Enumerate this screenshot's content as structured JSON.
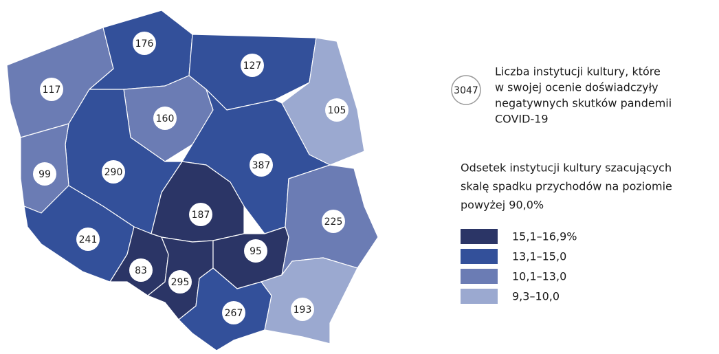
{
  "legend": {
    "circle_example": "3047",
    "circle_text": [
      "Liczba instytucji kultury, które",
      "w swojej ocenie doświadczyły",
      "negatywnych skutków pandemii",
      "COVID-19"
    ],
    "title": [
      "Odsetek instytucji kultury szacujących",
      "skalę spadku przychodów na poziomie",
      "powyżej 90,0%"
    ],
    "items": [
      {
        "label": "15,1–16,9%",
        "color": "#2b3566"
      },
      {
        "label": "13,1–15,0",
        "color": "#33509a"
      },
      {
        "label": "10,1–13,0",
        "color": "#6b7cb4"
      },
      {
        "label": "9,3–10,0",
        "color": "#9ba9d0"
      }
    ]
  },
  "regions": [
    {
      "value": "117",
      "color": "#6b7cb4"
    },
    {
      "value": "176",
      "color": "#33509a"
    },
    {
      "value": "127",
      "color": "#33509a"
    },
    {
      "value": "105",
      "color": "#9ba9d0"
    },
    {
      "value": "160",
      "color": "#6b7cb4"
    },
    {
      "value": "290",
      "color": "#33509a"
    },
    {
      "value": "99",
      "color": "#6b7cb4"
    },
    {
      "value": "387",
      "color": "#33509a"
    },
    {
      "value": "187",
      "color": "#2b3566"
    },
    {
      "value": "241",
      "color": "#33509a"
    },
    {
      "value": "83",
      "color": "#2b3566"
    },
    {
      "value": "295",
      "color": "#2b3566"
    },
    {
      "value": "95",
      "color": "#2b3566"
    },
    {
      "value": "225",
      "color": "#6b7cb4"
    },
    {
      "value": "267",
      "color": "#33509a"
    },
    {
      "value": "193",
      "color": "#9ba9d0"
    }
  ]
}
